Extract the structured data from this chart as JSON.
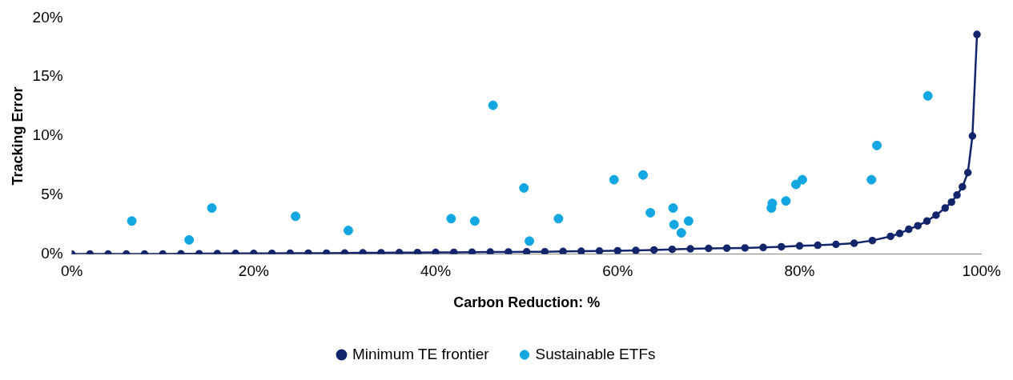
{
  "chart_data": {
    "type": "scatter",
    "xlabel": "Carbon Reduction: %",
    "ylabel": "Tracking Error",
    "xlim": [
      0,
      100
    ],
    "xticks": [
      {
        "value": 0,
        "label": "0%"
      },
      {
        "value": 20,
        "label": "20%"
      },
      {
        "value": 40,
        "label": "40%"
      },
      {
        "value": 60,
        "label": "60%"
      },
      {
        "value": 80,
        "label": "80%"
      },
      {
        "value": 100,
        "label": "100%"
      }
    ],
    "ylim": [
      0,
      20
    ],
    "yticks": [
      {
        "value": 0,
        "label": "0%"
      },
      {
        "value": 5,
        "label": "5%"
      },
      {
        "value": 10,
        "label": "10%"
      },
      {
        "value": 15,
        "label": "15%"
      },
      {
        "value": 20,
        "label": "20%"
      }
    ],
    "grid": false,
    "legend": "bottom",
    "marker": "circle",
    "series": [
      {
        "name": "Minimum TE frontier",
        "type": "line",
        "color": "#13256b",
        "x": [
          0,
          2,
          4,
          6,
          8,
          10,
          12,
          14,
          16,
          18,
          20,
          22,
          24,
          26,
          28,
          30,
          32,
          34,
          36,
          38,
          40,
          42,
          44,
          46,
          48,
          50,
          52,
          54,
          56,
          58,
          60,
          62,
          64,
          66,
          68,
          70,
          72,
          74,
          76,
          78,
          80,
          82,
          84,
          86,
          88,
          90,
          91,
          92,
          93,
          94,
          95,
          96,
          96.7,
          97.3,
          97.9,
          98.5,
          99,
          99.5
        ],
        "values": [
          0,
          0,
          0,
          0,
          0,
          0,
          0.02,
          0.03,
          0.04,
          0.05,
          0.05,
          0.06,
          0.07,
          0.08,
          0.08,
          0.09,
          0.1,
          0.11,
          0.12,
          0.13,
          0.14,
          0.15,
          0.16,
          0.17,
          0.18,
          0.19,
          0.2,
          0.22,
          0.24,
          0.26,
          0.28,
          0.31,
          0.35,
          0.4,
          0.44,
          0.48,
          0.5,
          0.52,
          0.56,
          0.62,
          0.7,
          0.75,
          0.82,
          0.92,
          1.15,
          1.5,
          1.75,
          2.1,
          2.4,
          2.8,
          3.3,
          3.9,
          4.4,
          5.0,
          5.7,
          6.9,
          10.0,
          18.6
        ]
      },
      {
        "name": "Sustainable ETFs",
        "type": "scatter",
        "color": "#12a7e0",
        "x": [
          6.6,
          12.9,
          15.4,
          24.6,
          30.4,
          41.7,
          44.3,
          46.3,
          49.7,
          50.3,
          53.5,
          59.6,
          62.8,
          63.6,
          66.1,
          66.2,
          67.0,
          67.8,
          76.9,
          77.0,
          78.5,
          79.6,
          80.3,
          87.9,
          88.5,
          94.1
        ],
        "values": [
          2.8,
          1.2,
          3.9,
          3.2,
          2.0,
          3.0,
          2.8,
          12.6,
          5.6,
          1.1,
          3.0,
          6.3,
          6.7,
          3.5,
          3.9,
          2.5,
          1.8,
          2.8,
          3.9,
          4.3,
          4.5,
          5.9,
          6.3,
          6.3,
          9.2,
          13.4
        ]
      }
    ]
  }
}
